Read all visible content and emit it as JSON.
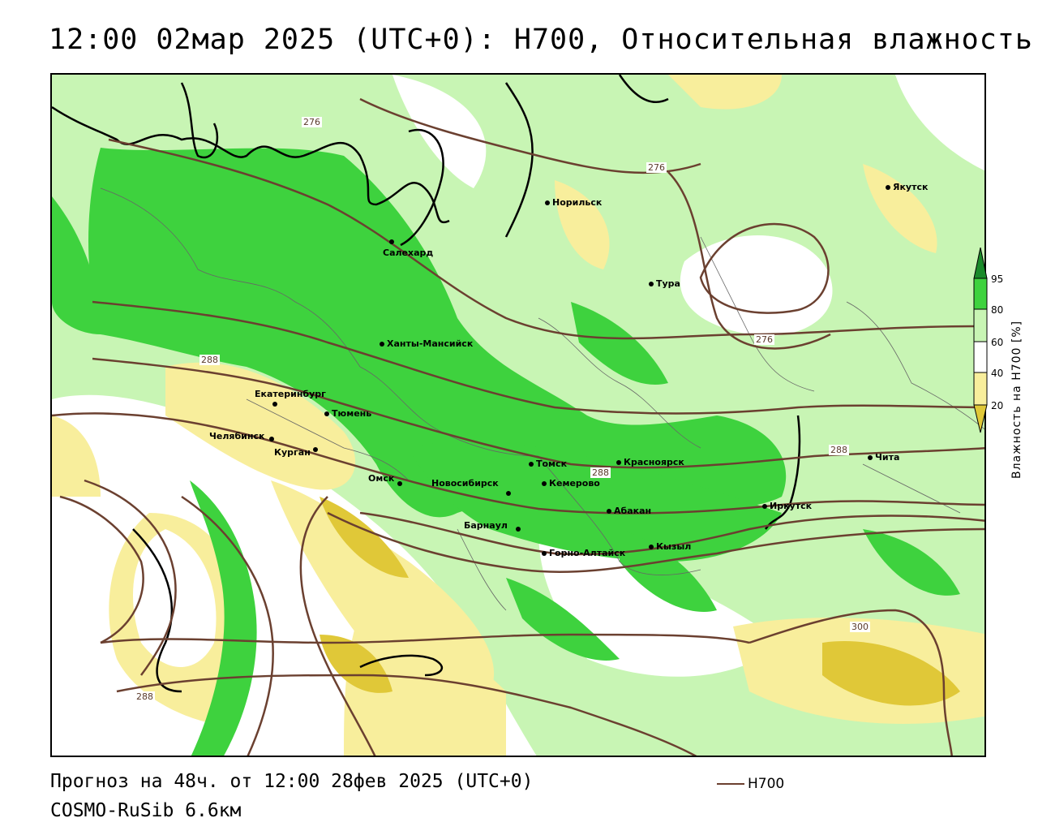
{
  "header": {
    "title": "12:00 02мар 2025 (UTC+0): H700, Относительная влажность"
  },
  "legend": {
    "title": "Влажность на H700 [%]",
    "ticks": [
      "95",
      "80",
      "60",
      "40",
      "20"
    ],
    "colors": {
      "c95": "#1a8a2a",
      "c80": "#3ed23e",
      "c60": "#c8f5b4",
      "c40": "#ffffff",
      "c20": "#f8ee9c",
      "c0": "#e0c838"
    }
  },
  "cities": [
    {
      "name": "Норильск"
    },
    {
      "name": "Якутск"
    },
    {
      "name": "Салехард"
    },
    {
      "name": "Тура"
    },
    {
      "name": "Ханты-Мансийск"
    },
    {
      "name": "Екатеринбург"
    },
    {
      "name": "Тюмень"
    },
    {
      "name": "Челябинск"
    },
    {
      "name": "Курган"
    },
    {
      "name": "Омск"
    },
    {
      "name": "Новосибирск"
    },
    {
      "name": "Томск"
    },
    {
      "name": "Кемерово"
    },
    {
      "name": "Красноярск"
    },
    {
      "name": "Абакан"
    },
    {
      "name": "Барнаул"
    },
    {
      "name": "Горно-Алтайск"
    },
    {
      "name": "Кызыл"
    },
    {
      "name": "Иркутск"
    },
    {
      "name": "Чита"
    }
  ],
  "contour_labels": [
    "276",
    "276",
    "276",
    "288",
    "288",
    "288",
    "288",
    "300"
  ],
  "footer": {
    "forecast": "Прогноз на 48ч. от 12:00 28фев 2025 (UTC+0)",
    "model": "COSMO-RuSib 6.6км",
    "line_legend": "H700"
  }
}
